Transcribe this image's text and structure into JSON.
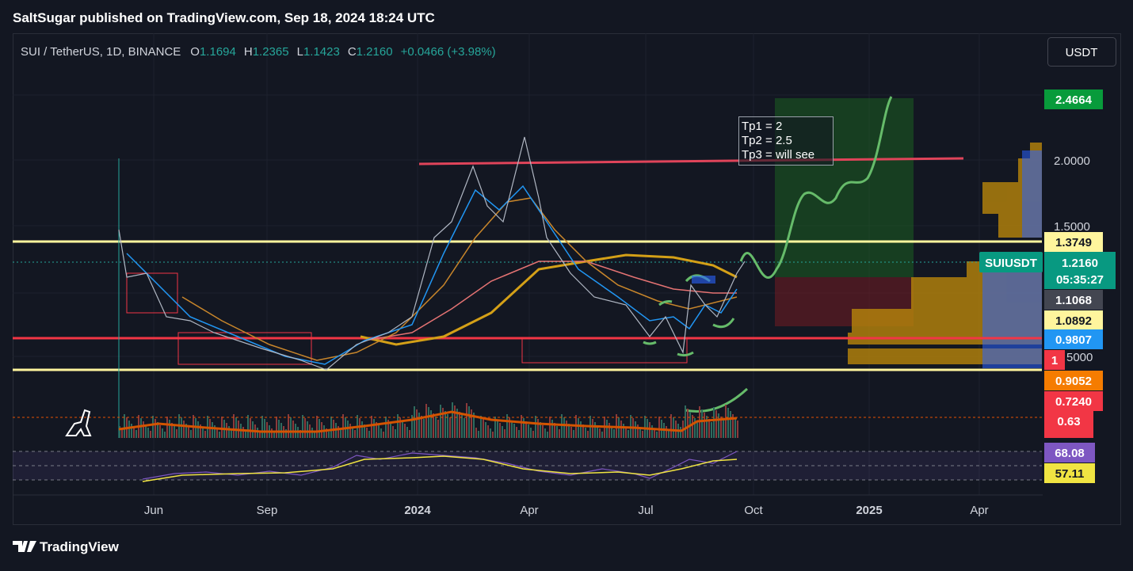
{
  "header": {
    "title": "SaltSugar published on TradingView.com, Sep 18, 2024 18:24 UTC"
  },
  "legend": {
    "symbol": "SUI / TetherUS, 1D, BINANCE",
    "ohlc": [
      {
        "key": "O",
        "value": "1.1694"
      },
      {
        "key": "H",
        "value": "1.2365"
      },
      {
        "key": "L",
        "value": "1.1423"
      },
      {
        "key": "C",
        "value": "1.2160"
      }
    ],
    "change": "+0.0466 (+3.98%)"
  },
  "currency_button": "USDT",
  "note": {
    "lines": [
      "Tp1 = 2",
      "Tp2 = 2.5",
      "Tp3 = will see"
    ]
  },
  "price_axis": {
    "target": "2.4664",
    "level_2": "2.0000",
    "level_15": "1.5000",
    "resistance": "1.3749",
    "symbol_badge": "SUIUSDT",
    "last_price": "1.2160",
    "countdown": "05:35:27",
    "ma_a": "1.1068",
    "ma_b": "1.0892",
    "ma_c": "0.9807",
    "red_small": "1",
    "partial": "5000",
    "ma_d": "0.9052",
    "vol_a": "0.7240",
    "vol_b": "0.63",
    "rsi": "68.08",
    "rsi_ma": "57.11"
  },
  "time_axis": [
    "Jun",
    "Sep",
    "2024",
    "Apr",
    "Jul",
    "Oct",
    "2025",
    "Apr"
  ],
  "footer": {
    "brand": "TradingView"
  }
}
